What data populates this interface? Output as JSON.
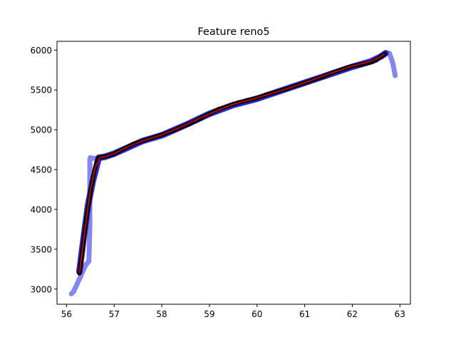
{
  "chart_data": {
    "type": "line",
    "title": "Feature reno5",
    "xlabel": "",
    "ylabel": "",
    "xlim": [
      55.8,
      63.22
    ],
    "ylim": [
      2810,
      6110
    ],
    "xticks": [
      56,
      57,
      58,
      59,
      60,
      61,
      62,
      63
    ],
    "yticks": [
      3000,
      3500,
      4000,
      4500,
      5000,
      5500,
      6000
    ],
    "grid": false,
    "legend": "none",
    "series": [
      {
        "style": "thick-line",
        "color": "#8080f0",
        "x": [
          56.1,
          56.15,
          56.25,
          56.4,
          56.47,
          56.49,
          56.49,
          56.5,
          56.52,
          56.6,
          56.68,
          56.8,
          57.0,
          57.3,
          57.6,
          58.0,
          58.5,
          59.0,
          59.5,
          60.0,
          60.5,
          61.0,
          61.5,
          62.0,
          62.5,
          62.7,
          62.78,
          62.85,
          62.9
        ],
        "y": [
          2940,
          2970,
          3100,
          3300,
          3350,
          3800,
          4630,
          4650,
          4645,
          4640,
          4640,
          4650,
          4690,
          4780,
          4860,
          4940,
          5060,
          5200,
          5310,
          5380,
          5490,
          5580,
          5690,
          5790,
          5870,
          5970,
          5960,
          5840,
          5680
        ]
      },
      {
        "style": "dark-blue-band",
        "color": "#1a1ad0",
        "x": [
          56.27,
          56.35,
          56.45,
          56.55,
          56.68,
          56.8,
          57.0,
          57.3,
          57.6,
          58.0,
          58.5,
          59.0,
          59.5,
          60.0,
          60.5,
          61.0,
          61.5,
          62.0,
          62.4,
          62.6,
          62.7
        ],
        "y": [
          3220,
          3600,
          4050,
          4350,
          4650,
          4660,
          4700,
          4780,
          4860,
          4930,
          5060,
          5200,
          5310,
          5390,
          5490,
          5590,
          5690,
          5790,
          5860,
          5920,
          5960
        ]
      },
      {
        "style": "black-markers",
        "color": "#000000",
        "x": [
          56.27,
          56.3,
          56.33,
          56.36,
          56.39,
          56.42,
          56.45,
          56.48,
          56.51,
          56.54,
          56.57,
          56.6,
          56.63,
          56.66,
          56.69,
          56.75,
          56.85,
          57.0,
          57.2,
          57.4,
          57.6,
          57.8,
          58.0,
          58.2,
          58.4,
          58.6,
          58.8,
          59.0,
          59.2,
          59.4,
          59.6,
          59.8,
          60.0,
          60.2,
          60.4,
          60.6,
          60.8,
          61.0,
          61.2,
          61.4,
          61.6,
          61.8,
          62.0,
          62.2,
          62.4,
          62.5,
          62.6,
          62.68
        ],
        "y": [
          3200,
          3330,
          3480,
          3620,
          3760,
          3900,
          4020,
          4130,
          4240,
          4340,
          4440,
          4520,
          4590,
          4640,
          4650,
          4660,
          4670,
          4700,
          4760,
          4820,
          4860,
          4900,
          4935,
          4980,
          5030,
          5080,
          5140,
          5200,
          5260,
          5300,
          5340,
          5370,
          5400,
          5440,
          5475,
          5510,
          5550,
          5590,
          5630,
          5670,
          5720,
          5760,
          5800,
          5820,
          5850,
          5880,
          5920,
          5950
        ]
      },
      {
        "style": "red-fit-line",
        "color": "#e00000",
        "x": [
          56.27,
          56.4,
          56.5,
          56.6,
          56.7,
          56.8,
          57.0,
          57.3,
          57.6,
          58.0,
          58.5,
          59.0,
          59.5,
          60.0,
          60.5,
          61.0,
          61.5,
          62.0,
          62.4,
          62.6,
          62.68
        ],
        "y": [
          3200,
          3800,
          4240,
          4520,
          4650,
          4660,
          4700,
          4790,
          4860,
          4935,
          5060,
          5200,
          5320,
          5400,
          5490,
          5590,
          5700,
          5800,
          5860,
          5920,
          5950
        ]
      }
    ]
  }
}
